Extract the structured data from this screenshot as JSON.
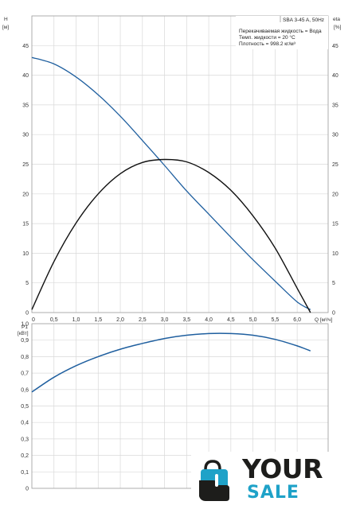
{
  "chart_data": [
    {
      "type": "line",
      "left_axis_label": "H",
      "left_axis_unit": "[м]",
      "right_axis_label": "eta",
      "right_axis_unit": "[%]",
      "xlabel": "Q [м³/ч]",
      "xlim": [
        0,
        6.7
      ],
      "ylim": [
        0,
        50
      ],
      "y_ticks": [
        0,
        5,
        10,
        15,
        20,
        25,
        30,
        35,
        40,
        45
      ],
      "x_ticks": [
        "0",
        "0,5",
        "1,0",
        "1,5",
        "2,0",
        "2,5",
        "3,0",
        "3,5",
        "4,0",
        "4,5",
        "5,0",
        "5,5",
        "6,0"
      ],
      "info_lines": [
        "SBA 3-45 A, 50Hz",
        "Перекачиваемая жидкость = Вода",
        "Темп. жидкости = 20 °C",
        "Плотность = 998.2 кг/м³"
      ],
      "grid": true,
      "series": [
        {
          "color": "#1f5f9f",
          "x": [
            0,
            0.5,
            1.0,
            1.5,
            2.0,
            2.5,
            3.0,
            3.5,
            4.0,
            4.5,
            5.0,
            5.5,
            6.0,
            6.3
          ],
          "values": [
            43,
            41.9,
            39.7,
            36.7,
            33.1,
            29.0,
            24.8,
            20.5,
            16.6,
            12.7,
            8.9,
            5.3,
            1.8,
            0.5
          ]
        },
        {
          "color": "#111111",
          "x": [
            0,
            0.5,
            1.0,
            1.5,
            2.0,
            2.5,
            3.0,
            3.5,
            4.0,
            4.5,
            5.0,
            5.5,
            6.0,
            6.3
          ],
          "values": [
            0.5,
            8.6,
            15.1,
            20.0,
            23.4,
            25.3,
            25.8,
            25.4,
            23.6,
            20.6,
            16.3,
            10.9,
            4.1,
            0
          ]
        }
      ]
    },
    {
      "type": "line",
      "left_axis_label": "P1",
      "left_axis_unit": "[кВт]",
      "xlim": [
        0,
        6.7
      ],
      "ylim": [
        0,
        1.0
      ],
      "y_ticks": [
        "0",
        "0,1",
        "0,2",
        "0,3",
        "0,4",
        "0,5",
        "0,6",
        "0,7",
        "0,8",
        "0,9",
        "1,0"
      ],
      "grid": true,
      "series": [
        {
          "color": "#1f5f9f",
          "x": [
            0,
            0.5,
            1.0,
            1.5,
            2.0,
            2.5,
            3.0,
            3.5,
            4.0,
            4.5,
            5.0,
            5.5,
            6.0,
            6.3
          ],
          "values": [
            0.585,
            0.675,
            0.745,
            0.8,
            0.845,
            0.88,
            0.91,
            0.93,
            0.94,
            0.94,
            0.93,
            0.905,
            0.865,
            0.835
          ]
        }
      ]
    }
  ],
  "logo": {
    "word_1": "YOUR",
    "word_2": "SALE",
    "icon": "shopping-bag-hand-icon",
    "colors": {
      "accent": "#1fa2c8",
      "dark": "#1d1d1b"
    }
  }
}
